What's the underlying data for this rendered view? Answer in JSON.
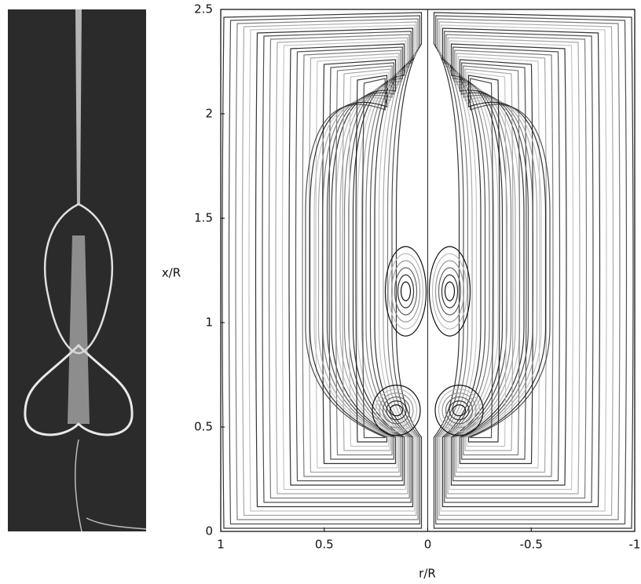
{
  "chart_data": {
    "type": "streamline",
    "xlabel": "r/R",
    "ylabel": "x/R",
    "xlim": [
      1,
      -1
    ],
    "ylim": [
      0,
      2.5
    ],
    "xticks": [
      1,
      0.5,
      0,
      -0.5,
      -1
    ],
    "yticks": [
      0,
      0.5,
      1,
      1.5,
      2,
      2.5
    ]
  }
}
